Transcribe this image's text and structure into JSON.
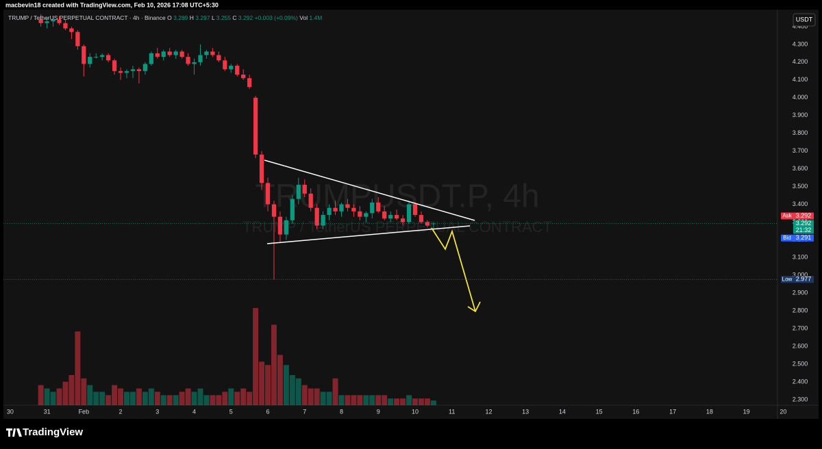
{
  "header": {
    "credit": "macbevin18 created with TradingView.com, Feb 10, 2026 17:08 UTC+5:30"
  },
  "footer": {
    "brand": "TradingView"
  },
  "chart_data": {
    "type": "candlestick",
    "legend": {
      "symbol": "TRUMP / TetherUS PERPETUAL CONTRACT · 4h · Binance",
      "items": [
        {
          "key": "O",
          "text": "3.289"
        },
        {
          "key": "H",
          "text": "3.297"
        },
        {
          "key": "L",
          "text": "3.255"
        },
        {
          "key": "C",
          "text": "3.292"
        },
        {
          "key": "",
          "text": "+0.003 (+0.09%)"
        },
        {
          "key": "Vol",
          "text": "1.4M"
        }
      ]
    },
    "watermark": {
      "ticker": "TRUMPUSDT.P, 4h",
      "name": "TRUMP / TetherUS PERPETUAL CONTRACT"
    },
    "currency_button": "USDT",
    "up_color": "#089981",
    "down_color": "#f23645",
    "xlim": [
      -1.1,
      127.3
    ],
    "xticks": [
      {
        "value": 0,
        "label": "30"
      },
      {
        "value": 6,
        "label": "31"
      },
      {
        "value": 12,
        "label": "Feb"
      },
      {
        "value": 18,
        "label": "2"
      },
      {
        "value": 24,
        "label": "3"
      },
      {
        "value": 30,
        "label": "4"
      },
      {
        "value": 36,
        "label": "5"
      },
      {
        "value": 42,
        "label": "6"
      },
      {
        "value": 48,
        "label": "7"
      },
      {
        "value": 54,
        "label": "8"
      },
      {
        "value": 60,
        "label": "9"
      },
      {
        "value": 66,
        "label": "10"
      },
      {
        "value": 72,
        "label": "11"
      },
      {
        "value": 78,
        "label": "12"
      },
      {
        "value": 84,
        "label": "13"
      },
      {
        "value": 90,
        "label": "14"
      },
      {
        "value": 96,
        "label": "15"
      },
      {
        "value": 102,
        "label": "16"
      },
      {
        "value": 108,
        "label": "17"
      },
      {
        "value": 114,
        "label": "18"
      },
      {
        "value": 120,
        "label": "19"
      },
      {
        "value": 126,
        "label": "20"
      }
    ],
    "ylim": [
      2.269,
      4.473
    ],
    "yticks": [
      {
        "value": 2.3,
        "label": "2.300"
      },
      {
        "value": 2.4,
        "label": "2.400"
      },
      {
        "value": 2.5,
        "label": "2.500"
      },
      {
        "value": 2.6,
        "label": "2.600"
      },
      {
        "value": 2.7,
        "label": "2.700"
      },
      {
        "value": 2.8,
        "label": "2.800"
      },
      {
        "value": 2.9,
        "label": "2.900"
      },
      {
        "value": 3.0,
        "label": "3.000"
      },
      {
        "value": 3.1,
        "label": "3.100"
      },
      {
        "value": 3.2,
        "label": "3.200"
      },
      {
        "value": 3.3,
        "label": "3.300"
      },
      {
        "value": 3.4,
        "label": "3.400"
      },
      {
        "value": 3.5,
        "label": "3.500"
      },
      {
        "value": 3.6,
        "label": "3.600"
      },
      {
        "value": 3.7,
        "label": "3.700"
      },
      {
        "value": 3.8,
        "label": "3.800"
      },
      {
        "value": 3.9,
        "label": "3.900"
      },
      {
        "value": 4.0,
        "label": "4.000"
      },
      {
        "value": 4.1,
        "label": "4.100"
      },
      {
        "value": 4.2,
        "label": "4.200"
      },
      {
        "value": 4.3,
        "label": "4.300"
      },
      {
        "value": 4.4,
        "label": "4.400"
      }
    ],
    "grid": false,
    "candles": {
      "x": [
        5,
        6,
        7,
        8,
        9,
        10,
        11,
        12,
        13,
        14,
        15,
        16,
        17,
        18,
        19,
        20,
        21,
        22,
        23,
        24,
        25,
        26,
        27,
        28,
        29,
        30,
        31,
        32,
        33,
        34,
        35,
        36,
        37,
        38,
        39,
        40,
        41,
        42,
        43,
        44,
        45,
        46,
        47,
        48,
        49,
        50,
        51,
        52,
        53,
        54,
        55,
        56,
        57,
        58,
        59,
        60,
        61,
        62,
        63,
        64,
        65,
        66,
        67,
        68,
        69
      ],
      "open": [
        4.44,
        4.42,
        4.43,
        4.44,
        4.42,
        4.39,
        4.37,
        4.29,
        4.19,
        4.23,
        4.23,
        4.24,
        4.21,
        4.15,
        4.14,
        4.15,
        4.16,
        4.15,
        4.19,
        4.25,
        4.23,
        4.26,
        4.24,
        4.26,
        4.23,
        4.19,
        4.2,
        4.24,
        4.26,
        4.24,
        4.21,
        4.16,
        4.18,
        4.13,
        4.11,
        4.0,
        3.68,
        3.52,
        3.4,
        3.33,
        3.23,
        3.31,
        3.43,
        3.51,
        3.46,
        3.38,
        3.28,
        3.34,
        3.38,
        3.36,
        3.4,
        3.38,
        3.36,
        3.33,
        3.35,
        3.41,
        3.36,
        3.32,
        3.34,
        3.32,
        3.3,
        3.4,
        3.34,
        3.3,
        3.289
      ],
      "high": [
        4.47,
        4.45,
        4.46,
        4.46,
        4.44,
        4.4,
        4.38,
        4.3,
        4.25,
        4.25,
        4.25,
        4.25,
        4.22,
        4.17,
        4.16,
        4.18,
        4.17,
        4.2,
        4.26,
        4.28,
        4.27,
        4.28,
        4.27,
        4.27,
        4.25,
        4.22,
        4.3,
        4.27,
        4.28,
        4.26,
        4.23,
        4.19,
        4.19,
        4.16,
        4.13,
        4.01,
        3.7,
        3.55,
        3.42,
        3.36,
        3.33,
        3.45,
        3.55,
        3.54,
        3.49,
        3.4,
        3.36,
        3.4,
        3.42,
        3.41,
        3.43,
        3.4,
        3.39,
        3.36,
        3.43,
        3.44,
        3.39,
        3.36,
        3.37,
        3.34,
        3.42,
        3.41,
        3.36,
        3.31,
        3.297
      ],
      "low": [
        4.4,
        4.39,
        4.4,
        4.41,
        4.38,
        4.33,
        4.27,
        4.12,
        4.17,
        4.22,
        4.21,
        4.2,
        4.13,
        4.1,
        4.11,
        4.11,
        4.08,
        4.13,
        4.18,
        4.22,
        4.21,
        4.23,
        4.22,
        4.22,
        4.18,
        4.13,
        4.18,
        4.22,
        4.23,
        4.2,
        4.15,
        4.14,
        4.12,
        4.1,
        4.05,
        3.66,
        3.48,
        3.36,
        2.977,
        3.18,
        3.2,
        3.29,
        3.4,
        3.44,
        3.36,
        3.26,
        3.26,
        3.31,
        3.34,
        3.33,
        3.36,
        3.33,
        3.31,
        3.3,
        3.32,
        3.35,
        3.31,
        3.3,
        3.31,
        3.28,
        3.29,
        3.33,
        3.29,
        3.27,
        3.255
      ],
      "close": [
        4.42,
        4.43,
        4.44,
        4.42,
        4.39,
        4.37,
        4.29,
        4.19,
        4.23,
        4.23,
        4.24,
        4.21,
        4.15,
        4.14,
        4.15,
        4.16,
        4.15,
        4.19,
        4.25,
        4.23,
        4.26,
        4.24,
        4.26,
        4.23,
        4.19,
        4.2,
        4.24,
        4.26,
        4.24,
        4.21,
        4.16,
        4.18,
        4.13,
        4.11,
        4.06,
        3.68,
        3.52,
        3.4,
        3.33,
        3.23,
        3.31,
        3.43,
        3.51,
        3.46,
        3.38,
        3.28,
        3.34,
        3.38,
        3.36,
        3.4,
        3.38,
        3.36,
        3.33,
        3.35,
        3.41,
        3.36,
        3.32,
        3.34,
        3.32,
        3.3,
        3.4,
        3.34,
        3.3,
        3.28,
        3.292
      ],
      "volume": [
        6,
        5,
        4,
        5,
        7,
        9,
        22,
        8,
        6,
        4,
        4,
        3,
        6,
        5,
        4,
        4,
        5,
        4,
        5,
        4,
        3,
        3,
        3,
        4,
        5,
        4,
        5,
        3,
        3,
        3,
        4,
        5,
        4,
        5,
        4,
        29,
        13,
        12,
        24,
        15,
        12,
        9,
        8,
        6,
        5,
        5,
        4,
        4,
        8,
        3,
        3,
        3,
        3,
        3,
        3,
        3,
        3,
        2,
        2,
        2,
        3,
        2,
        2,
        2,
        1.4
      ]
    },
    "price_markers": [
      {
        "label": "Ask",
        "value": 3.292,
        "color": "#f23645"
      },
      {
        "countdown": "21:32",
        "value": 3.292,
        "color": "#089981"
      },
      {
        "label": "Bid",
        "value": 3.291,
        "color": "#2962ff"
      },
      {
        "label": "Low",
        "value": 2.977,
        "color": "#1c3765"
      }
    ]
  }
}
